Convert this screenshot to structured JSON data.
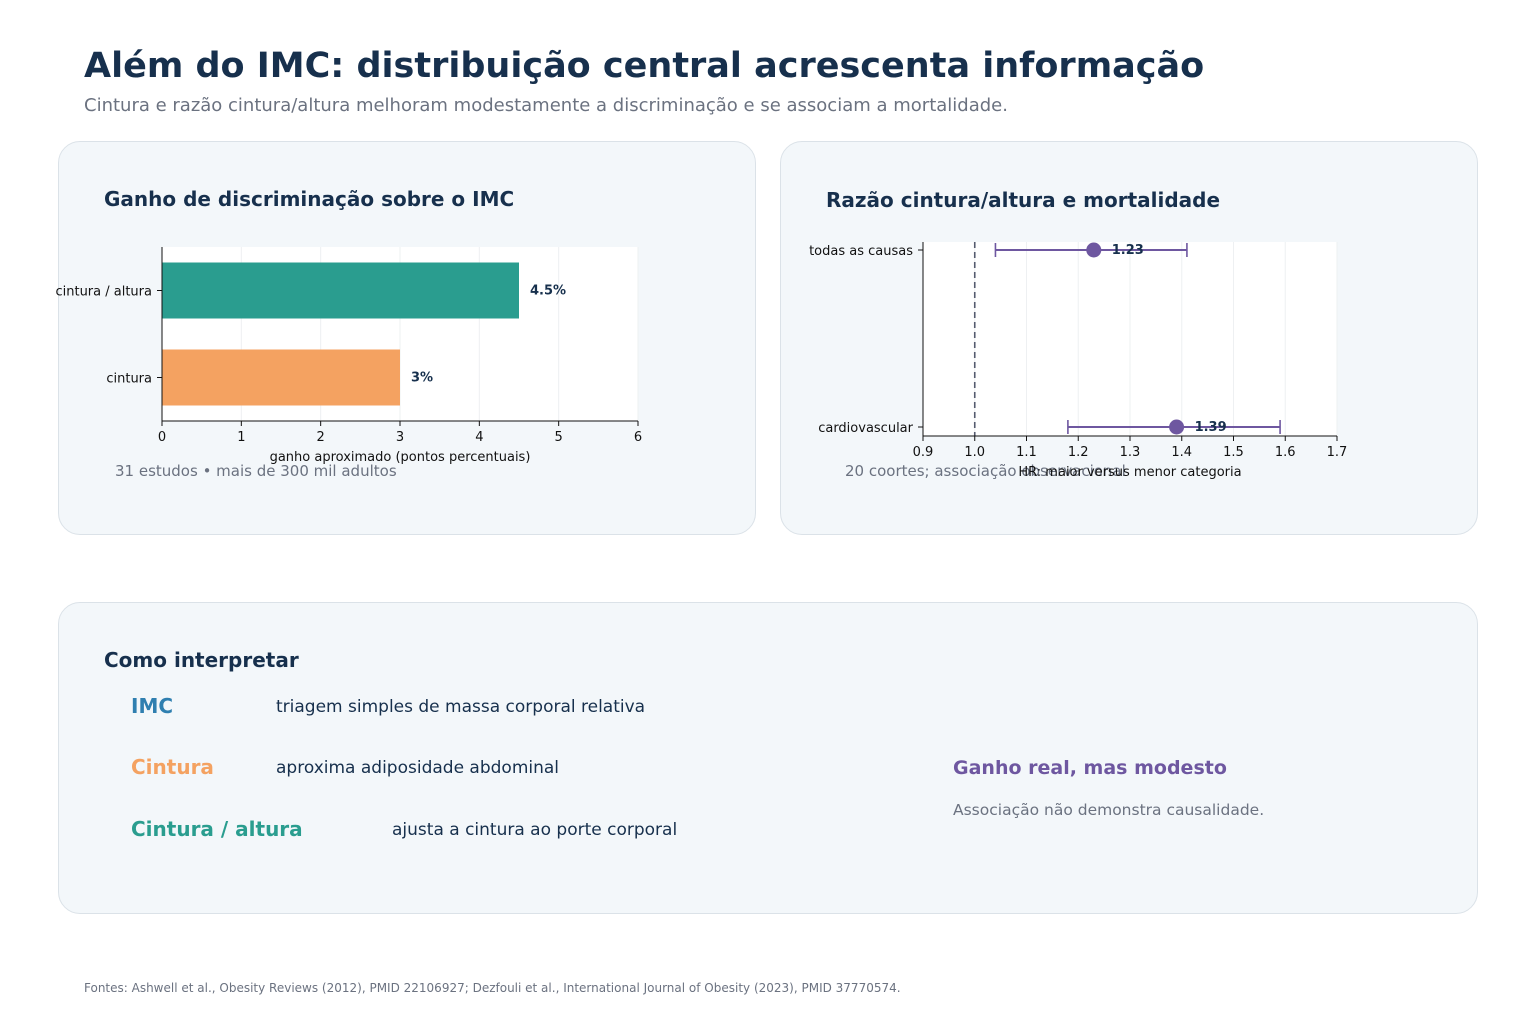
{
  "header": {
    "title": "Além do IMC: distribuição central acrescenta informação",
    "subtitle": "Cintura e razão cintura/altura melhoram modestamente a discriminação e se associam a mortalidade."
  },
  "chart_data": [
    {
      "type": "bar",
      "orientation": "horizontal",
      "title": "Ganho de discriminação sobre o IMC",
      "categories": [
        "cintura / altura",
        "cintura"
      ],
      "values": [
        4.5,
        3
      ],
      "value_labels": [
        "4.5%",
        "3%"
      ],
      "colors": [
        "#2a9d8f",
        "#f4a261"
      ],
      "xlabel": "ganho aproximado (pontos percentuais)",
      "xlim": [
        0,
        6
      ],
      "xticks": [
        "0",
        "1",
        "2",
        "3",
        "4",
        "5",
        "6"
      ],
      "grid": true,
      "note": "31 estudos • mais de 300 mil adultos"
    },
    {
      "type": "scatter",
      "subtype": "forest",
      "title": "Razão cintura/altura e mortalidade",
      "categories": [
        "todas as causas",
        "cardiovascular"
      ],
      "estimates": [
        1.23,
        1.39
      ],
      "ci_low": [
        1.04,
        1.18
      ],
      "ci_high": [
        1.41,
        1.59
      ],
      "value_labels": [
        "1.23",
        "1.39"
      ],
      "reference_line": 1.0,
      "xlabel": "HR: maior versus menor categoria",
      "xlim": [
        0.9,
        1.7
      ],
      "xticks": [
        "0.9",
        "1.0",
        "1.1",
        "1.2",
        "1.3",
        "1.4",
        "1.5",
        "1.6",
        "1.7"
      ],
      "color": "#6e57a0",
      "grid": true,
      "note": "20 coortes; associação observacional"
    }
  ],
  "interpret": {
    "title": "Como interpretar",
    "items": [
      {
        "name": "IMC",
        "desc": "triagem simples de massa corporal relativa",
        "color": "#2f7fb0"
      },
      {
        "name": "Cintura",
        "desc": "aproxima adiposidade abdominal",
        "color": "#f4a261"
      },
      {
        "name": "Cintura / altura",
        "desc": "ajusta a cintura ao porte corporal",
        "color": "#2a9d8f"
      }
    ],
    "callout_title": "Ganho real, mas modesto",
    "callout_text": "Associação não demonstra causalidade."
  },
  "footer": "Fontes: Ashwell et al., Obesity Reviews (2012), PMID 22106927; Dezfouli et al., International Journal of Obesity (2023), PMID 37770574."
}
